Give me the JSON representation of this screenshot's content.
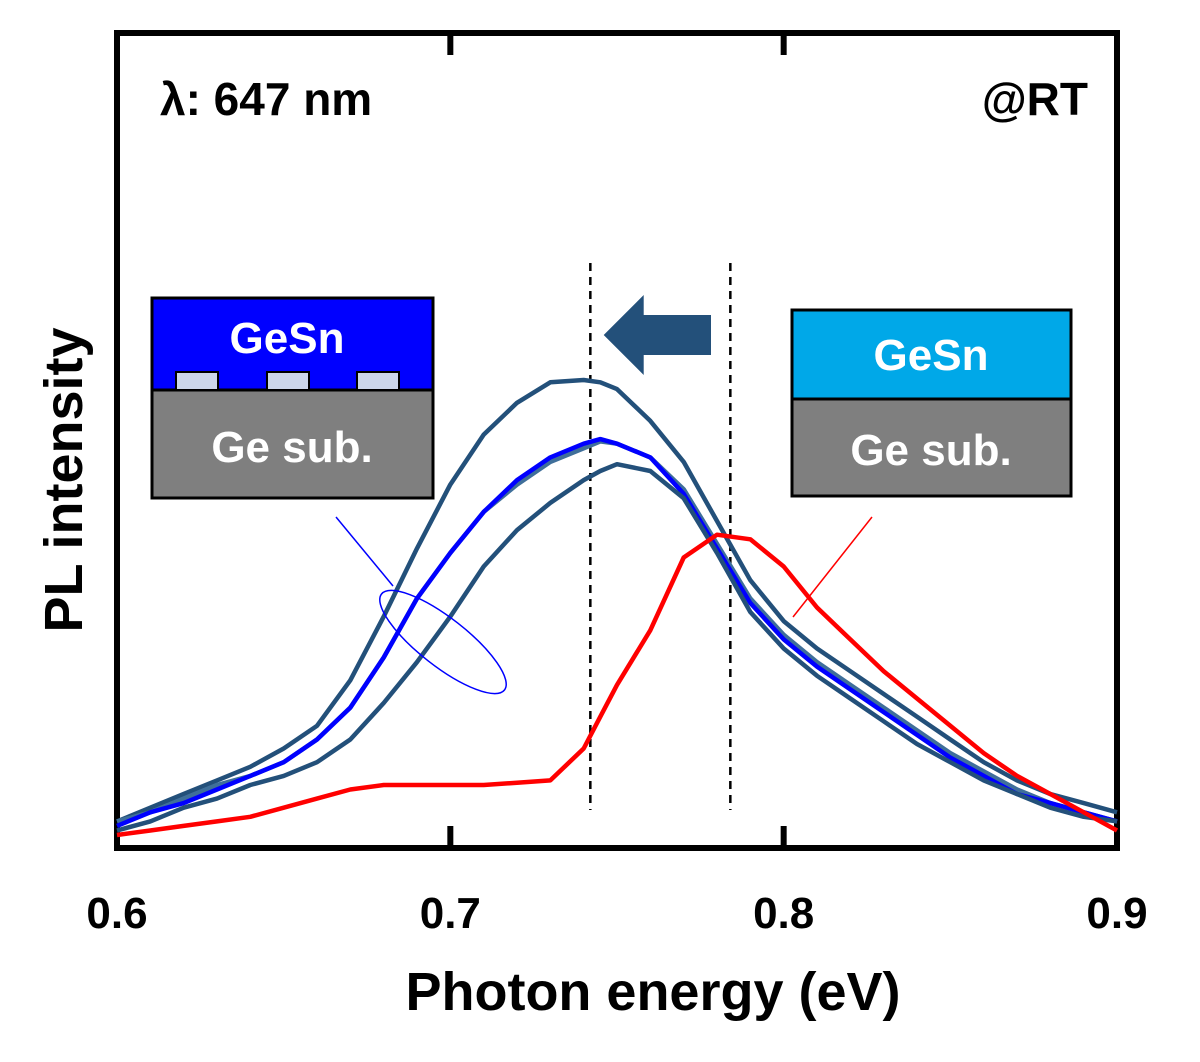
{
  "chart_data": {
    "type": "line",
    "xlabel": "Photon energy (eV)",
    "ylabel": "PL intensity",
    "xlim": [
      0.6,
      0.9
    ],
    "ylim": [
      0,
      1.1
    ],
    "xticks": [
      0.6,
      0.7,
      0.8,
      0.9
    ],
    "xtick_labels": [
      "0.6",
      "0.7",
      "0.8",
      "0.9"
    ],
    "y_tick_labels_shown": false,
    "grid": false,
    "legend": "none",
    "annotations": {
      "top_left": "λ: 647 nm",
      "top_right": "@RT"
    },
    "dashed_lines_x": [
      0.742,
      0.784
    ],
    "arrow": {
      "from_x": 0.78,
      "to_x": 0.743,
      "color": "#23507a"
    },
    "insets": {
      "left": {
        "top_label": "GeSn",
        "bottom_label": "Ge sub.",
        "top_color": "#0000ff",
        "bottom_color": "#7f7f7f",
        "points_to": "blue curves"
      },
      "right": {
        "top_label": "GeSn",
        "bottom_label": "Ge sub.",
        "top_color": "#00a8e8",
        "bottom_color": "#7f7f7f",
        "points_to": "red curve"
      }
    },
    "series": [
      {
        "color": "#23507a",
        "x": [
          0.6,
          0.61,
          0.62,
          0.63,
          0.64,
          0.65,
          0.66,
          0.67,
          0.68,
          0.69,
          0.7,
          0.71,
          0.72,
          0.73,
          0.74,
          0.745,
          0.75,
          0.76,
          0.77,
          0.78,
          0.79,
          0.8,
          0.81,
          0.82,
          0.83,
          0.84,
          0.85,
          0.86,
          0.87,
          0.88,
          0.89,
          0.9
        ],
        "y": [
          0.03,
          0.06,
          0.09,
          0.12,
          0.15,
          0.19,
          0.24,
          0.34,
          0.48,
          0.63,
          0.77,
          0.88,
          0.95,
          0.995,
          1.0,
          0.995,
          0.98,
          0.91,
          0.82,
          0.69,
          0.56,
          0.47,
          0.41,
          0.36,
          0.31,
          0.26,
          0.21,
          0.16,
          0.12,
          0.09,
          0.07,
          0.05
        ]
      },
      {
        "color": "#3f6f9a",
        "x": [
          0.6,
          0.61,
          0.62,
          0.63,
          0.64,
          0.65,
          0.66,
          0.67,
          0.68,
          0.69,
          0.7,
          0.71,
          0.72,
          0.73,
          0.74,
          0.745,
          0.75,
          0.76,
          0.77,
          0.78,
          0.79,
          0.8,
          0.81,
          0.82,
          0.83,
          0.84,
          0.85,
          0.86,
          0.87,
          0.88,
          0.89,
          0.9
        ],
        "y": [
          0.03,
          0.05,
          0.08,
          0.11,
          0.13,
          0.16,
          0.21,
          0.28,
          0.39,
          0.52,
          0.62,
          0.71,
          0.77,
          0.82,
          0.85,
          0.865,
          0.86,
          0.83,
          0.76,
          0.64,
          0.52,
          0.44,
          0.38,
          0.33,
          0.28,
          0.23,
          0.18,
          0.14,
          0.1,
          0.07,
          0.05,
          0.03
        ]
      },
      {
        "color": "#0000ff",
        "x": [
          0.6,
          0.61,
          0.62,
          0.63,
          0.64,
          0.65,
          0.66,
          0.67,
          0.68,
          0.69,
          0.7,
          0.71,
          0.72,
          0.73,
          0.74,
          0.745,
          0.75,
          0.76,
          0.77,
          0.78,
          0.79,
          0.8,
          0.81,
          0.82,
          0.83,
          0.84,
          0.85,
          0.86,
          0.87,
          0.88,
          0.89,
          0.9
        ],
        "y": [
          0.02,
          0.05,
          0.07,
          0.1,
          0.13,
          0.16,
          0.21,
          0.28,
          0.39,
          0.52,
          0.62,
          0.71,
          0.78,
          0.83,
          0.86,
          0.87,
          0.86,
          0.83,
          0.75,
          0.63,
          0.51,
          0.43,
          0.37,
          0.32,
          0.27,
          0.22,
          0.17,
          0.13,
          0.09,
          0.07,
          0.05,
          0.03
        ]
      },
      {
        "color": "#23507a",
        "x": [
          0.6,
          0.61,
          0.62,
          0.63,
          0.64,
          0.65,
          0.66,
          0.67,
          0.68,
          0.69,
          0.7,
          0.71,
          0.72,
          0.73,
          0.74,
          0.745,
          0.75,
          0.76,
          0.77,
          0.78,
          0.79,
          0.8,
          0.81,
          0.82,
          0.83,
          0.84,
          0.85,
          0.86,
          0.87,
          0.88,
          0.89,
          0.9
        ],
        "y": [
          0.01,
          0.03,
          0.06,
          0.08,
          0.11,
          0.13,
          0.16,
          0.21,
          0.29,
          0.38,
          0.48,
          0.59,
          0.67,
          0.73,
          0.78,
          0.8,
          0.815,
          0.8,
          0.74,
          0.62,
          0.49,
          0.41,
          0.35,
          0.3,
          0.25,
          0.2,
          0.16,
          0.12,
          0.09,
          0.06,
          0.04,
          0.03
        ]
      },
      {
        "color": "#ff0000",
        "x": [
          0.6,
          0.61,
          0.62,
          0.63,
          0.64,
          0.65,
          0.66,
          0.67,
          0.68,
          0.69,
          0.7,
          0.71,
          0.72,
          0.73,
          0.74,
          0.745,
          0.75,
          0.76,
          0.77,
          0.78,
          0.79,
          0.8,
          0.81,
          0.82,
          0.83,
          0.84,
          0.85,
          0.86,
          0.87,
          0.88,
          0.89,
          0.9
        ],
        "y": [
          0.0,
          0.01,
          0.02,
          0.03,
          0.04,
          0.06,
          0.08,
          0.1,
          0.11,
          0.11,
          0.11,
          0.11,
          0.115,
          0.12,
          0.19,
          0.26,
          0.33,
          0.45,
          0.61,
          0.66,
          0.65,
          0.59,
          0.5,
          0.43,
          0.36,
          0.3,
          0.24,
          0.18,
          0.13,
          0.09,
          0.05,
          0.01
        ]
      }
    ]
  }
}
